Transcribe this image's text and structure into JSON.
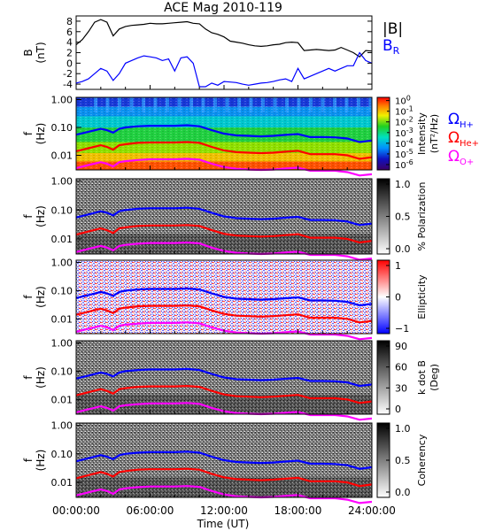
{
  "figure": {
    "title": "ACE Mag 2010-119",
    "xlabel": "Time (UT)",
    "xticks": [
      "00:00:00",
      "06:00:00",
      "12:00:00",
      "18:00:00",
      "24:00:00"
    ],
    "xrange_hours": [
      0,
      24
    ]
  },
  "legend": {
    "b_total": "|B|",
    "b_r": "B",
    "b_r_sub": "R",
    "omega_h": "Ω",
    "omega_h_sub": "H+",
    "omega_he": "Ω",
    "omega_he_sub": "He+",
    "omega_o": "Ω",
    "omega_o_sub": "O+"
  },
  "colors": {
    "b_total": "#000000",
    "b_r": "#0000ff",
    "omega_h": "#0000ff",
    "omega_he": "#ff0000",
    "omega_o": "#ff00ff"
  },
  "chart_data": [
    {
      "type": "line",
      "panel": "magnetic-field",
      "ylabel": "B",
      "yunit": "(nT)",
      "ylim": [
        -5,
        9
      ],
      "yticks": [
        "-4",
        "-2",
        "0",
        "2",
        "4",
        "6",
        "8"
      ],
      "x": [
        0,
        0.5,
        1,
        1.5,
        2,
        2.5,
        3,
        3.5,
        4,
        4.5,
        5,
        5.5,
        6,
        6.5,
        7,
        7.5,
        8,
        8.5,
        9,
        9.5,
        10,
        10.5,
        11,
        11.5,
        12,
        12.5,
        13,
        13.5,
        14,
        14.5,
        15,
        15.5,
        16,
        16.5,
        17,
        17.5,
        18,
        18.5,
        19,
        19.5,
        20,
        20.5,
        21,
        21.5,
        22,
        22.5,
        23,
        23.5,
        24
      ],
      "series": [
        {
          "name": "|B|",
          "values": [
            3.5,
            4.5,
            6.0,
            7.8,
            8.3,
            7.8,
            5.2,
            6.5,
            7.0,
            7.2,
            7.3,
            7.4,
            7.6,
            7.5,
            7.5,
            7.6,
            7.7,
            7.8,
            7.9,
            7.6,
            7.5,
            6.5,
            5.8,
            5.5,
            5.0,
            4.2,
            4.0,
            3.8,
            3.5,
            3.3,
            3.2,
            3.3,
            3.5,
            3.6,
            3.9,
            4.0,
            3.9,
            2.4,
            2.5,
            2.6,
            2.5,
            2.4,
            2.5,
            3.0,
            2.5,
            2.0,
            1.2,
            2.4,
            2.3
          ]
        },
        {
          "name": "B_R",
          "values": [
            -3.8,
            -3.5,
            -3.0,
            -2.0,
            -1.0,
            -1.5,
            -3.3,
            -2.0,
            0.0,
            0.5,
            1.0,
            1.4,
            1.2,
            1.0,
            0.5,
            0.8,
            -1.5,
            1.0,
            1.2,
            0.0,
            -4.5,
            -4.5,
            -3.8,
            -4.2,
            -3.5,
            -3.6,
            -3.7,
            -4.0,
            -4.2,
            -4.0,
            -3.8,
            -3.7,
            -3.5,
            -3.2,
            -3.0,
            -3.5,
            -1.0,
            -3.0,
            -2.5,
            -2.0,
            -1.5,
            -1.0,
            -1.5,
            -1.0,
            -0.5,
            -0.5,
            2.0,
            0.5,
            0.0
          ]
        }
      ]
    },
    {
      "type": "heatmap",
      "panel": "intensity",
      "ylabel": "f",
      "yunit": "(Hz)",
      "scale": "log",
      "ylim": [
        0.003,
        1.2
      ],
      "yticks": [
        "1.00",
        "0.10",
        "0.01"
      ],
      "colorbar_label": "Intensity",
      "colorbar_unit": "(nT²/Hz)",
      "colorbar_base": "10",
      "colorbar_exponents": [
        "0",
        "-2",
        "-4",
        "-6"
      ],
      "colorbar_minor_exponents": [
        "-1",
        "-3",
        "-5"
      ]
    },
    {
      "type": "heatmap",
      "panel": "polarization",
      "ylabel": "f",
      "yunit": "(Hz)",
      "scale": "log",
      "ylim": [
        0.003,
        1.2
      ],
      "yticks": [
        "1.00",
        "0.10",
        "0.01"
      ],
      "colorbar_label": "% Polarization",
      "colorbar_ticks": [
        "1.0",
        "0.5",
        "0.0"
      ]
    },
    {
      "type": "heatmap",
      "panel": "ellipticity",
      "ylabel": "f",
      "yunit": "(Hz)",
      "scale": "log",
      "ylim": [
        0.003,
        1.2
      ],
      "yticks": [
        "1.00",
        "0.10",
        "0.01"
      ],
      "colorbar_label": "Ellipticity",
      "colorbar_ticks": [
        "1",
        "0",
        "−1"
      ]
    },
    {
      "type": "heatmap",
      "panel": "k-dot-b",
      "ylabel": "f",
      "yunit": "(Hz)",
      "scale": "log",
      "ylim": [
        0.003,
        1.2
      ],
      "yticks": [
        "1.00",
        "0.10",
        "0.01"
      ],
      "colorbar_label": "k dot B",
      "colorbar_unit": "(Deg)",
      "colorbar_ticks": [
        "90",
        "60",
        "30",
        "0"
      ]
    },
    {
      "type": "heatmap",
      "panel": "coherency",
      "ylabel": "f",
      "yunit": "(Hz)",
      "scale": "log",
      "ylim": [
        0.003,
        1.2
      ],
      "yticks": [
        "1.00",
        "0.10",
        "0.01"
      ],
      "colorbar_label": "Coherency",
      "colorbar_ticks": [
        "1.0",
        "0.5",
        "0.0"
      ]
    }
  ],
  "gyrofrequencies": {
    "x": [
      0,
      1,
      2,
      2.5,
      3,
      3.5,
      4,
      5,
      6,
      7,
      8,
      9,
      10,
      11,
      12,
      13,
      14,
      15,
      16,
      17,
      18,
      19,
      20,
      21,
      22,
      23,
      24
    ],
    "omega_h_hz": [
      0.055,
      0.07,
      0.09,
      0.08,
      0.065,
      0.09,
      0.1,
      0.11,
      0.115,
      0.115,
      0.115,
      0.12,
      0.11,
      0.08,
      0.06,
      0.052,
      0.05,
      0.048,
      0.05,
      0.054,
      0.058,
      0.045,
      0.045,
      0.044,
      0.04,
      0.03,
      0.034
    ],
    "omega_he_hz": [
      0.014,
      0.018,
      0.023,
      0.02,
      0.016,
      0.023,
      0.025,
      0.028,
      0.029,
      0.029,
      0.029,
      0.03,
      0.028,
      0.02,
      0.015,
      0.013,
      0.0125,
      0.012,
      0.0125,
      0.0135,
      0.0145,
      0.011,
      0.011,
      0.011,
      0.01,
      0.0075,
      0.0085
    ],
    "omega_o_hz": [
      0.0035,
      0.0045,
      0.0057,
      0.005,
      0.004,
      0.0057,
      0.0062,
      0.0068,
      0.0072,
      0.0072,
      0.0072,
      0.0075,
      0.007,
      0.005,
      0.0038,
      0.0033,
      0.0031,
      0.003,
      0.0031,
      0.0034,
      0.0036,
      0.0028,
      0.0028,
      0.0028,
      0.0025,
      0.0019,
      0.0021
    ]
  }
}
